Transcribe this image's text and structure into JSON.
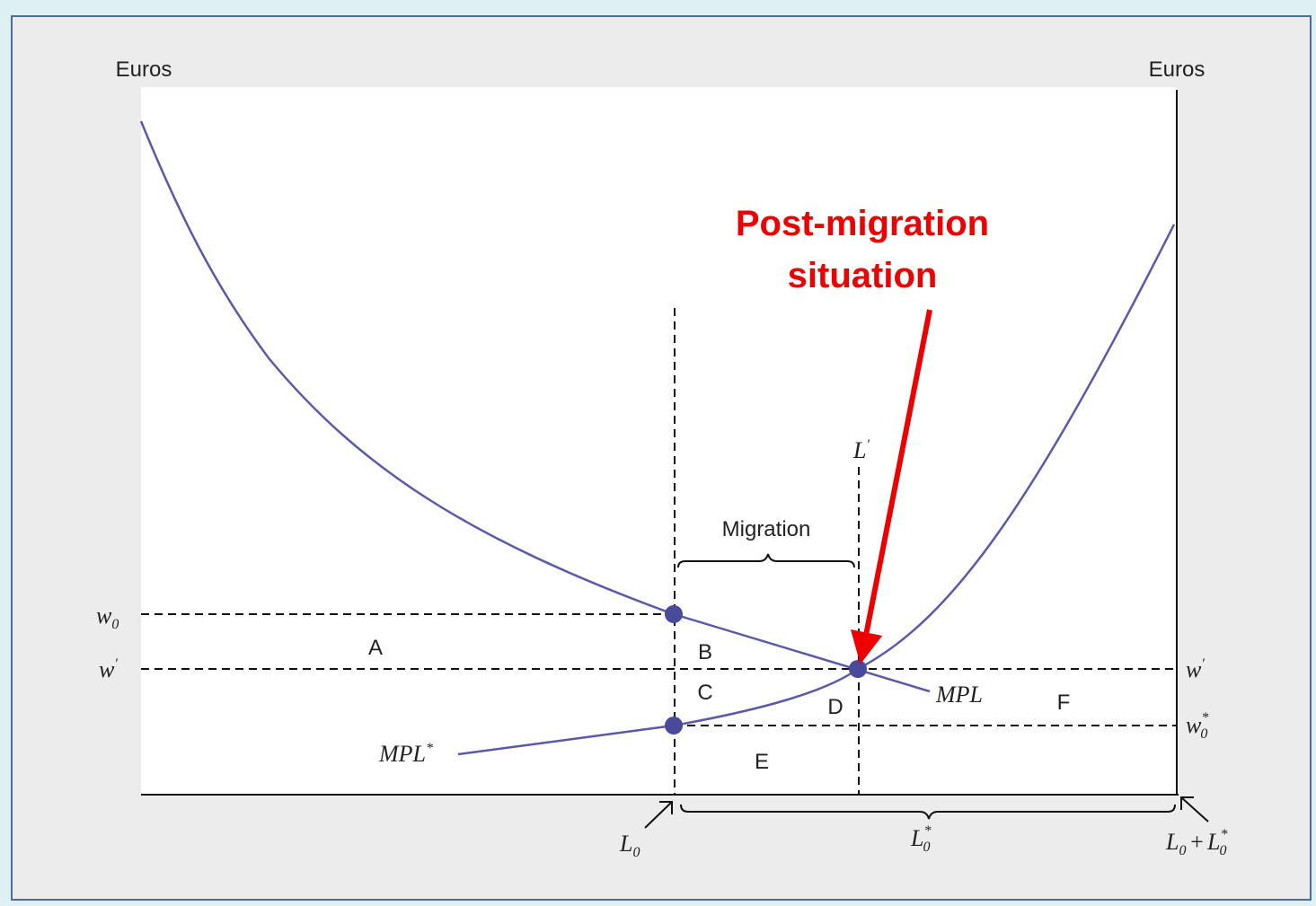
{
  "axis_labels": {
    "left": "Euros",
    "right": "Euros"
  },
  "annotation": {
    "lines": [
      "Post-migration",
      "situation"
    ]
  },
  "brace_label": "Migration",
  "curves": {
    "mpl": "MPL",
    "mpl_star": {
      "base": "MPL",
      "sup": "*"
    }
  },
  "areas": [
    "A",
    "B",
    "C",
    "D",
    "E",
    "F"
  ],
  "y_labels": {
    "w0": {
      "base": "w",
      "sub": "0"
    },
    "w_prime_left": {
      "base": "w",
      "sup": "′"
    },
    "w_prime_right": {
      "base": "w",
      "sup": "′"
    },
    "w0_star": {
      "base": "w",
      "sup": "*",
      "sub": "0"
    }
  },
  "x_labels": {
    "l_prime": {
      "base": "L",
      "sup": "′"
    },
    "l0": {
      "base": "L",
      "sub": "0"
    },
    "l0_star": {
      "base": "L",
      "sup": "*",
      "sub": "0"
    },
    "total": {
      "base": "L",
      "sub": "0",
      "op": "+",
      "base2": "L",
      "sup2": "*",
      "sub2": "0"
    }
  }
}
